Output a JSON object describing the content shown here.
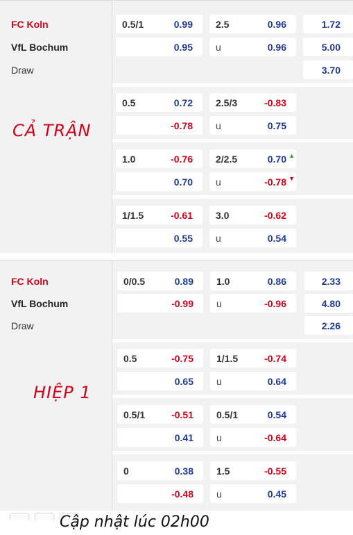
{
  "full_match": {
    "label": "CẢ TRẬN",
    "teams": {
      "home": "FC Koln",
      "away": "VfL Bochum",
      "draw": "Draw"
    },
    "rows": [
      {
        "hdp_line": "0.5/1",
        "hdp_home": "0.99",
        "hdp_away": "0.95",
        "ou_line": "2.5",
        "ou_over": "0.96",
        "ou_u": "u",
        "ou_under": "0.96",
        "x12": [
          "1.72",
          "5.00",
          "3.70"
        ]
      },
      {
        "hdp_line": "0.5",
        "hdp_home": "0.72",
        "hdp_away": "-0.78",
        "ou_line": "2.5/3",
        "ou_over": "-0.83",
        "ou_u": "u",
        "ou_under": "0.75"
      },
      {
        "hdp_line": "1.0",
        "hdp_home": "-0.76",
        "hdp_away": "0.70",
        "ou_line": "2/2.5",
        "ou_over": "0.70",
        "ou_u": "u",
        "ou_under": "-0.78"
      },
      {
        "hdp_line": "1/1.5",
        "hdp_home": "-0.61",
        "hdp_away": "0.55",
        "ou_line": "3.0",
        "ou_over": "-0.62",
        "ou_u": "u",
        "ou_under": "0.54"
      }
    ]
  },
  "first_half": {
    "label": "HIỆP 1",
    "teams": {
      "home": "FC Koln",
      "away": "VfL Bochum",
      "draw": "Draw"
    },
    "rows": [
      {
        "hdp_line": "0/0.5",
        "hdp_home": "0.89",
        "hdp_away": "-0.99",
        "ou_line": "1.0",
        "ou_over": "0.86",
        "ou_u": "u",
        "ou_under": "-0.96",
        "x12": [
          "2.33",
          "4.80",
          "2.26"
        ]
      },
      {
        "hdp_line": "0.5",
        "hdp_home": "-0.75",
        "hdp_away": "0.65",
        "ou_line": "1/1.5",
        "ou_over": "-0.74",
        "ou_u": "u",
        "ou_under": "0.64"
      },
      {
        "hdp_line": "0.5/1",
        "hdp_home": "-0.51",
        "hdp_away": "0.41",
        "ou_line": "0.5/1",
        "ou_over": "0.54",
        "ou_u": "u",
        "ou_under": "-0.64"
      },
      {
        "hdp_line": "0",
        "hdp_home": "0.38",
        "hdp_away": "-0.48",
        "ou_line": "1.5",
        "ou_over": "-0.55",
        "ou_u": "u",
        "ou_under": "0.45"
      }
    ]
  },
  "footer": {
    "updated": "Cập nhật lúc 02h00"
  },
  "colors": {
    "negative": "#d0021b",
    "positive": "#1f3a93",
    "home_team": "#d0021b"
  }
}
